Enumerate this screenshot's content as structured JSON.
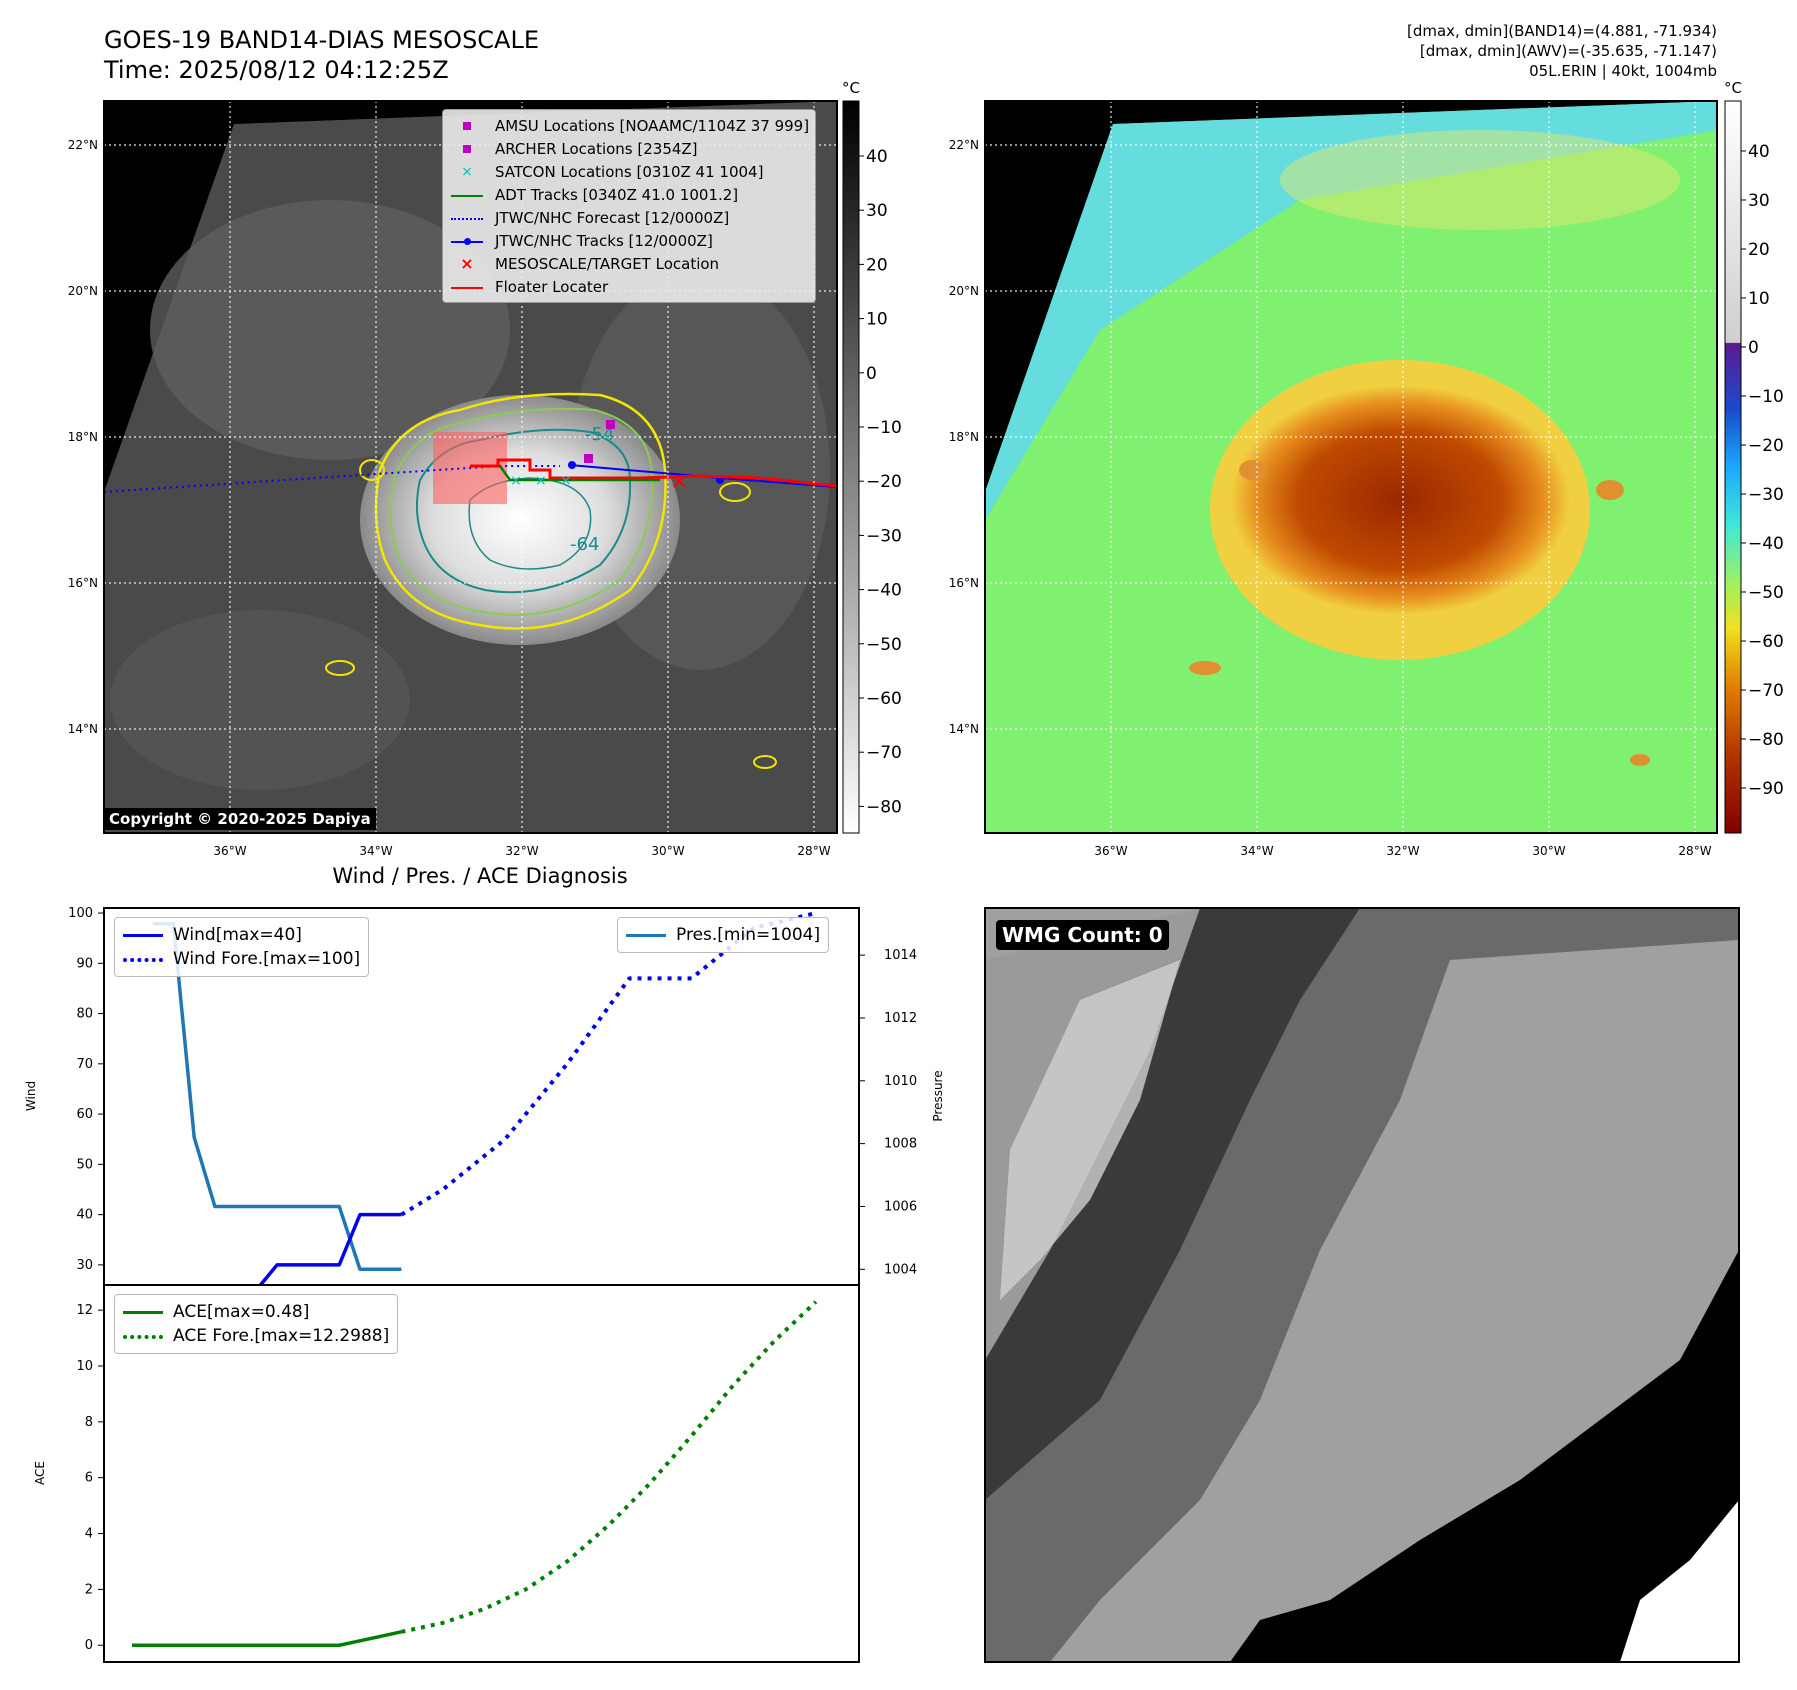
{
  "header": {
    "title_line1": "GOES-19 BAND14-DIAS MESOSCALE",
    "title_line2": "Time: 2025/08/12 04:12:25Z",
    "info_line1": "[dmax, dmin](BAND14)=(4.881, -71.934)",
    "info_line2": "[dmax, dmin](AWV)=(-35.635, -71.147)",
    "info_line3": "05L.ERIN | 40kt, 1004mb"
  },
  "maps": {
    "lon_ticks": [
      "36°W",
      "34°W",
      "32°W",
      "30°W",
      "28°W"
    ],
    "lat_ticks": [
      "22°N",
      "20°N",
      "18°N",
      "16°N",
      "14°N"
    ],
    "copyright": "Copyright © 2020-2025 Dapiya",
    "contour_labels": [
      "-54",
      "-64"
    ],
    "colors": {
      "land_bg": "#4a4a4a",
      "cold_top": "#f2f2f2",
      "contour_yellow": "#f2e600",
      "contour_green": "#88cc55",
      "contour_teal": "#1a8a8a",
      "aw_bg": "#80f070",
      "aw_core": "#b84000"
    },
    "gray_colorbar": {
      "unit": "°C",
      "labels": [
        "40",
        "30",
        "20",
        "10",
        "0",
        "−10",
        "−20",
        "−30",
        "−40",
        "−50",
        "−60",
        "−70",
        "−80"
      ]
    },
    "color_colorbar": {
      "unit": "°C",
      "labels": [
        "40",
        "30",
        "20",
        "10",
        "0",
        "−10",
        "−20",
        "−30",
        "−40",
        "−50",
        "−60",
        "−70",
        "−80",
        "−90"
      ]
    },
    "overlay_legend": [
      {
        "label": "AMSU Locations [NOAAMC/1104Z 37 999]",
        "marker": "square",
        "color": "#c000c0"
      },
      {
        "label": "ARCHER Locations [2354Z]",
        "marker": "square",
        "color": "#c000c0"
      },
      {
        "label": "SATCON Locations [0310Z 41 1004]",
        "marker": "x",
        "color": "#00c0c0"
      },
      {
        "label": "ADT Tracks [0340Z 41.0 1001.2]",
        "marker": "line",
        "color": "#008000"
      },
      {
        "label": "JTWC/NHC Forecast [12/0000Z]",
        "marker": "dotted",
        "color": "#0000ff"
      },
      {
        "label": "JTWC/NHC Tracks [12/0000Z]",
        "marker": "line-dot",
        "color": "#0000ff"
      },
      {
        "label": "MESOSCALE/TARGET Location",
        "marker": "x",
        "color": "#ff0000"
      },
      {
        "label": "Floater Locater",
        "marker": "line",
        "color": "#ff0000"
      }
    ]
  },
  "wmg": {
    "label": "WMG Count: 0"
  },
  "chart_data": [
    {
      "type": "line",
      "title": "Wind / Pres. / ACE Diagnosis",
      "ylabel": "Wind",
      "y2label": "Pressure",
      "x": [
        0,
        1,
        2,
        3,
        4,
        5,
        6,
        7,
        8,
        9,
        10,
        11,
        12,
        13
      ],
      "ylim": [
        26,
        101
      ],
      "y2lim": [
        1003.5,
        1015.5
      ],
      "yticks": [
        "30",
        "40",
        "50",
        "60",
        "70",
        "80",
        "90",
        "100"
      ],
      "y2ticks": [
        "1004",
        "1006",
        "1008",
        "1010",
        "1012",
        "1014"
      ],
      "colors": {
        "wind": "#0000ee",
        "pres": "#1f77b4",
        "ace": "#008000"
      },
      "series": [
        {
          "name": "Wind[max=40]",
          "style": "solid",
          "x": [
            0,
            1,
            2,
            3,
            4,
            5,
            6,
            7,
            8,
            9,
            10,
            11,
            12,
            13
          ],
          "values": [
            25,
            25,
            25,
            25,
            25,
            25,
            25,
            30,
            30,
            30,
            30,
            40,
            40,
            40
          ]
        },
        {
          "name": "Wind Fore.[max=100]",
          "style": "dotted",
          "x": [
            13,
            15,
            18,
            21,
            24,
            27,
            30,
            33
          ],
          "values": [
            40,
            45,
            55,
            70,
            87,
            87,
            97,
            100
          ]
        },
        {
          "name": "Pres.[min=1004]",
          "style": "solid",
          "axis": "right",
          "x": [
            1,
            2,
            3,
            4,
            5,
            6,
            7,
            8,
            9,
            10,
            11,
            12,
            13
          ],
          "values": [
            1015,
            1015,
            1008.2,
            1006,
            1006,
            1006,
            1006,
            1006,
            1006,
            1006,
            1004,
            1004,
            1004
          ]
        }
      ]
    },
    {
      "type": "line",
      "ylabel": "ACE",
      "ylim": [
        -0.6,
        12.9
      ],
      "yticks": [
        "0",
        "2",
        "4",
        "6",
        "8",
        "10",
        "12"
      ],
      "series": [
        {
          "name": "ACE[max=0.48]",
          "style": "solid",
          "x": [
            0,
            2,
            4,
            6,
            8,
            10,
            11,
            13
          ],
          "values": [
            0,
            0,
            0,
            0,
            0,
            0,
            0.16,
            0.48
          ]
        },
        {
          "name": "ACE Fore.[max=12.2988]",
          "style": "dotted",
          "x": [
            13,
            15,
            17,
            19,
            21,
            23,
            25,
            27,
            29,
            31,
            33
          ],
          "values": [
            0.48,
            0.8,
            1.3,
            2,
            3,
            4.3,
            5.8,
            7.5,
            9.3,
            10.9,
            12.2988
          ]
        }
      ]
    }
  ]
}
